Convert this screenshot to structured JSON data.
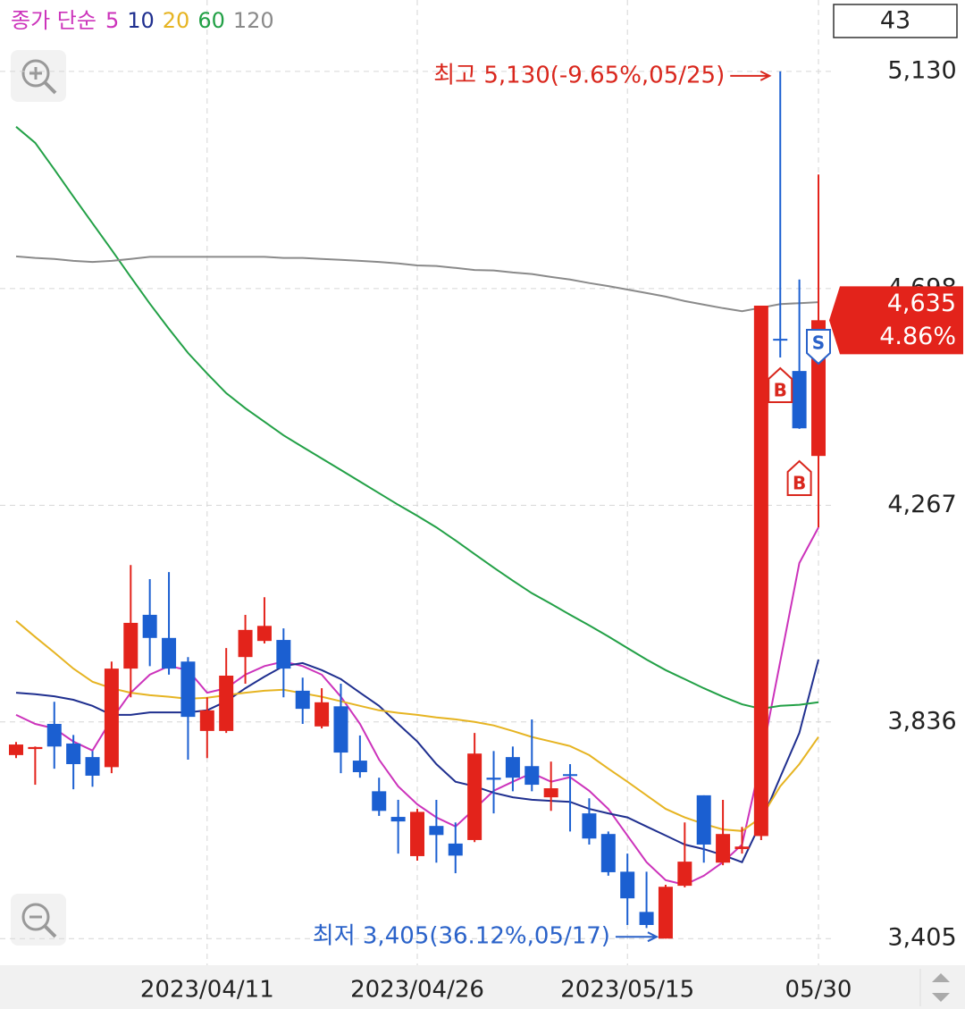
{
  "chart_data": {
    "type": "candlestick",
    "legend_title": "종가 단순",
    "counter": "43",
    "categories": [
      null,
      null,
      null,
      null,
      null,
      null,
      null,
      null,
      null,
      null,
      "2023/04/11",
      null,
      null,
      null,
      null,
      null,
      null,
      null,
      null,
      null,
      null,
      "2023/04/26",
      null,
      null,
      null,
      null,
      null,
      null,
      null,
      null,
      null,
      null,
      "2023/05/15",
      null,
      null,
      null,
      null,
      null,
      null,
      null,
      null,
      null,
      "05/30"
    ],
    "open": [
      3770,
      3782,
      3832,
      3793,
      3766,
      3746,
      3942,
      4049,
      4003,
      3956,
      3818,
      3818,
      3965,
      3997,
      3999,
      3898,
      3827,
      3867,
      3759,
      3698,
      3647,
      3569,
      3629,
      3594,
      3601,
      3725,
      3766,
      3748,
      3686,
      3732,
      3654,
      3613,
      3538,
      3458,
      3405,
      3510,
      3690,
      3556,
      3583,
      3609,
      4598,
      4534,
      4365
    ],
    "high": [
      3796,
      3787,
      3876,
      3810,
      3778,
      3956,
      4148,
      4120,
      4134,
      3965,
      3885,
      3983,
      4049,
      4084,
      4022,
      3924,
      3903,
      3912,
      3809,
      3725,
      3681,
      3663,
      3681,
      3636,
      3814,
      3778,
      3787,
      3841,
      3757,
      3752,
      3684,
      3618,
      3574,
      3538,
      3512,
      3636,
      3690,
      3681,
      3627,
      4664,
      5130,
      4716,
      4925
    ],
    "low": [
      3764,
      3711,
      3743,
      3702,
      3707,
      3734,
      3885,
      3947,
      3930,
      3761,
      3764,
      3814,
      3912,
      3992,
      3885,
      3832,
      3823,
      3734,
      3725,
      3649,
      3574,
      3560,
      3556,
      3535,
      3597,
      3654,
      3698,
      3698,
      3659,
      3618,
      3592,
      3530,
      3432,
      3426,
      3405,
      3507,
      3556,
      3551,
      3574,
      3601,
      4561,
      4419,
      4223
    ],
    "close": [
      3791,
      3786,
      3787,
      3752,
      3729,
      3942,
      4033,
      4003,
      3942,
      3846,
      3859,
      3928,
      4019,
      4027,
      3942,
      3862,
      3875,
      3775,
      3736,
      3659,
      3638,
      3657,
      3611,
      3570,
      3773,
      3721,
      3725,
      3711,
      3704,
      3729,
      3604,
      3537,
      3485,
      3432,
      3508,
      3558,
      3592,
      3613,
      3588,
      4664,
      4595,
      4420,
      4635
    ],
    "up_color": "#e3231b",
    "down_color": "#1b5fd1",
    "moving_averages": [
      {
        "name": "5",
        "color": "#cc33bb",
        "values": [
          3850,
          3832,
          3823,
          3797,
          3779,
          3841,
          3894,
          3930,
          3947,
          3939,
          3894,
          3903,
          3930,
          3947,
          3956,
          3947,
          3930,
          3886,
          3832,
          3761,
          3708,
          3672,
          3646,
          3628,
          3663,
          3699,
          3717,
          3734,
          3717,
          3726,
          3699,
          3663,
          3610,
          3557,
          3521,
          3512,
          3530,
          3557,
          3592,
          3761,
          3956,
          4152,
          4223
        ]
      },
      {
        "name": "10",
        "color": "#1f2f8f",
        "values": [
          3894,
          3891,
          3887,
          3880,
          3868,
          3850,
          3850,
          3855,
          3855,
          3855,
          3859,
          3877,
          3903,
          3926,
          3947,
          3953,
          3939,
          3921,
          3894,
          3868,
          3832,
          3797,
          3752,
          3717,
          3708,
          3695,
          3686,
          3681,
          3679,
          3677,
          3663,
          3654,
          3646,
          3628,
          3610,
          3592,
          3583,
          3571,
          3557,
          3637,
          3726,
          3814,
          3960
        ]
      },
      {
        "name": "20",
        "color": "#e6b422",
        "values": [
          4037,
          4005,
          3974,
          3942,
          3916,
          3903,
          3894,
          3889,
          3886,
          3882,
          3884,
          3889,
          3894,
          3898,
          3900,
          3893,
          3886,
          3877,
          3868,
          3859,
          3854,
          3850,
          3845,
          3841,
          3836,
          3829,
          3818,
          3806,
          3797,
          3788,
          3770,
          3743,
          3717,
          3690,
          3663,
          3646,
          3633,
          3622,
          3619,
          3646,
          3708,
          3752,
          3806
        ]
      },
      {
        "name": "60",
        "color": "#22a046",
        "values": [
          5020,
          4988,
          4935,
          4881,
          4828,
          4775,
          4721,
          4668,
          4618,
          4570,
          4529,
          4490,
          4460,
          4433,
          4406,
          4383,
          4360,
          4337,
          4314,
          4291,
          4268,
          4246,
          4223,
          4197,
          4170,
          4143,
          4117,
          4092,
          4071,
          4049,
          4028,
          4006,
          3983,
          3960,
          3939,
          3921,
          3903,
          3886,
          3871,
          3862,
          3868,
          3870,
          3875
        ]
      },
      {
        "name": "120",
        "color": "#8a8a8a",
        "values": [
          4762,
          4759,
          4757,
          4753,
          4751,
          4753,
          4757,
          4761,
          4761,
          4761,
          4761,
          4761,
          4761,
          4761,
          4759,
          4759,
          4757,
          4755,
          4753,
          4751,
          4748,
          4744,
          4743,
          4739,
          4735,
          4734,
          4730,
          4727,
          4721,
          4716,
          4709,
          4703,
          4696,
          4689,
          4682,
          4673,
          4666,
          4659,
          4653,
          4660,
          4667,
          4669,
          4671
        ]
      }
    ],
    "ylim": [
      3352,
      5272
    ],
    "yticks": [
      {
        "value": 3405,
        "label": "3,405"
      },
      {
        "value": 3836,
        "label": "3,836"
      },
      {
        "value": 4267,
        "label": "4,267"
      },
      {
        "value": 4698,
        "label": "4,698"
      },
      {
        "value": 5130,
        "label": "5,130"
      }
    ],
    "grid": true,
    "high_annotation": "최고 5,130(-9.65%,05/25)",
    "low_annotation": "최저 3,405(36.12%,05/17)",
    "current_price_label": "4,635",
    "current_change_label": "4.86%",
    "trade_markers": [
      "B",
      "B",
      "S"
    ]
  }
}
